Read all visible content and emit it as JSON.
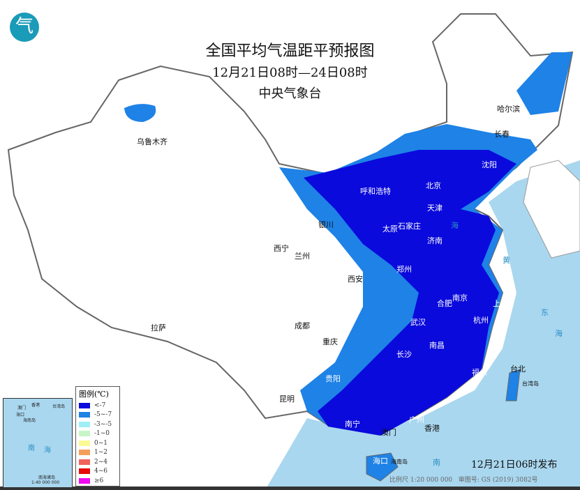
{
  "header": {
    "title": "全国平均气温距平预报图",
    "period": "12月21日08时—24日08时",
    "agency": "中央气象台",
    "logo_char": "气"
  },
  "cities": [
    {
      "name": "乌鲁木齐"
    },
    {
      "name": "哈尔滨"
    },
    {
      "name": "长春"
    },
    {
      "name": "沈阳"
    },
    {
      "name": "呼和浩特"
    },
    {
      "name": "北京"
    },
    {
      "name": "天津"
    },
    {
      "name": "银川"
    },
    {
      "name": "太原"
    },
    {
      "name": "石家庄"
    },
    {
      "name": "济南"
    },
    {
      "name": "西宁"
    },
    {
      "name": "兰州"
    },
    {
      "name": "郑州"
    },
    {
      "name": "西安"
    },
    {
      "name": "合肥"
    },
    {
      "name": "南京"
    },
    {
      "name": "上海"
    },
    {
      "name": "武汉"
    },
    {
      "name": "杭州"
    },
    {
      "name": "成都"
    },
    {
      "name": "重庆"
    },
    {
      "name": "南昌"
    },
    {
      "name": "长沙"
    },
    {
      "name": "拉萨"
    },
    {
      "name": "贵阳"
    },
    {
      "name": "福州"
    },
    {
      "name": "台北"
    },
    {
      "name": "昆明"
    },
    {
      "name": "广州"
    },
    {
      "name": "南宁"
    },
    {
      "name": "香港"
    },
    {
      "name": "澳门"
    },
    {
      "name": "海口"
    },
    {
      "name": "海南岛"
    }
  ],
  "seas": {
    "yellow": "黄",
    "east1": "东",
    "east2": "海",
    "south": "南",
    "south2": "海",
    "bohai": "海",
    "taiwan": "台湾岛"
  },
  "legend": {
    "title": "图例(℃)",
    "items": [
      {
        "label": "<-7",
        "color": "#0a0adc"
      },
      {
        "label": "-5~-7",
        "color": "#1e82e6"
      },
      {
        "label": "-3~-5",
        "color": "#9ef0f5"
      },
      {
        "label": "-1~0",
        "color": "#c8f5c8"
      },
      {
        "label": "0~1",
        "color": "#fafa96"
      },
      {
        "label": "1~2",
        "color": "#f5a05a"
      },
      {
        "label": "2~4",
        "color": "#f0645a"
      },
      {
        "label": "4~6",
        "color": "#e60a0a"
      },
      {
        "label": "≥6",
        "color": "#f00af0"
      }
    ]
  },
  "inset": {
    "labels": [
      "澳门",
      "香港",
      "台湾岛",
      "海口",
      "海南岛",
      "南",
      "海",
      "南海诸岛"
    ],
    "scale": "1:40 000 000"
  },
  "footer": {
    "published": "12月21日06时发布",
    "scale": "比例尺 1:20 000 000",
    "map_number": "审图号: GS (2019) 3082号"
  }
}
